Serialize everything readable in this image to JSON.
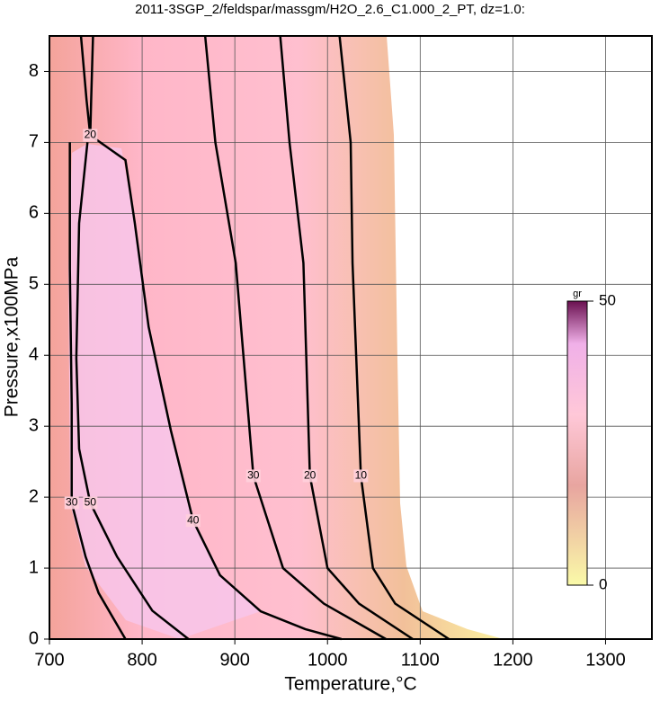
{
  "chart_data": {
    "type": "contour",
    "title": "2011-3SGP_2/feldspar/massgm/H2O_2.6_C1.000_2_PT, dz=1.0:",
    "x_label": "Temperature,°C",
    "y_label": "Pressure,x100MPa",
    "xlim": [
      700,
      1350
    ],
    "xticks": [
      700,
      800,
      900,
      1000,
      1100,
      1200,
      1300
    ],
    "ylim": [
      0,
      8.5
    ],
    "yticks": [
      0,
      1,
      2,
      3,
      4,
      5,
      6,
      7,
      8
    ],
    "grid": true,
    "colorbar": {
      "label": "gr",
      "lim": [
        0,
        50
      ],
      "ticks": [
        0,
        50
      ]
    },
    "contours": [
      {
        "level": 10,
        "x": [
          1013,
          1025,
          1027,
          1036,
          1049,
          1073,
          1131
        ],
        "y": [
          8.5,
          7,
          5.3,
          2.3,
          1,
          0.5,
          0
        ]
      },
      {
        "level": 20,
        "x": [
          949,
          959,
          974,
          981,
          1000,
          1034,
          1092
        ],
        "y": [
          8.5,
          7,
          5.3,
          2.3,
          1,
          0.5,
          0
        ]
      },
      {
        "level": 30,
        "x": [
          868,
          879,
          901,
          920,
          952,
          996,
          1063
        ],
        "y": [
          8.5,
          7,
          5.3,
          2.3,
          1,
          0.5,
          0
        ]
      },
      {
        "level": 40,
        "x": [
          744,
          782,
          792,
          807,
          831,
          855,
          884,
          928,
          976,
          1015
        ],
        "y": [
          7.1,
          6.75,
          5.87,
          4.4,
          2.94,
          1.67,
          0.9,
          0.39,
          0.14,
          0
        ]
      },
      {
        "level": 50,
        "x": [
          741,
          732,
          729,
          732,
          744,
          773,
          811,
          850
        ],
        "y": [
          7.0,
          5.86,
          3.96,
          2.68,
          1.92,
          1.16,
          0.4,
          0
        ]
      },
      {
        "level": 30,
        "x": [
          722,
          722,
          724,
          724,
          739,
          753,
          782
        ],
        "y": [
          7.0,
          5.22,
          3.31,
          1.92,
          1.16,
          0.65,
          0
        ]
      },
      {
        "level": 20,
        "x": [
          734,
          740,
          744,
          745,
          747
        ],
        "y": [
          8.5,
          7.6,
          7.1,
          7.6,
          8.5
        ]
      }
    ]
  }
}
